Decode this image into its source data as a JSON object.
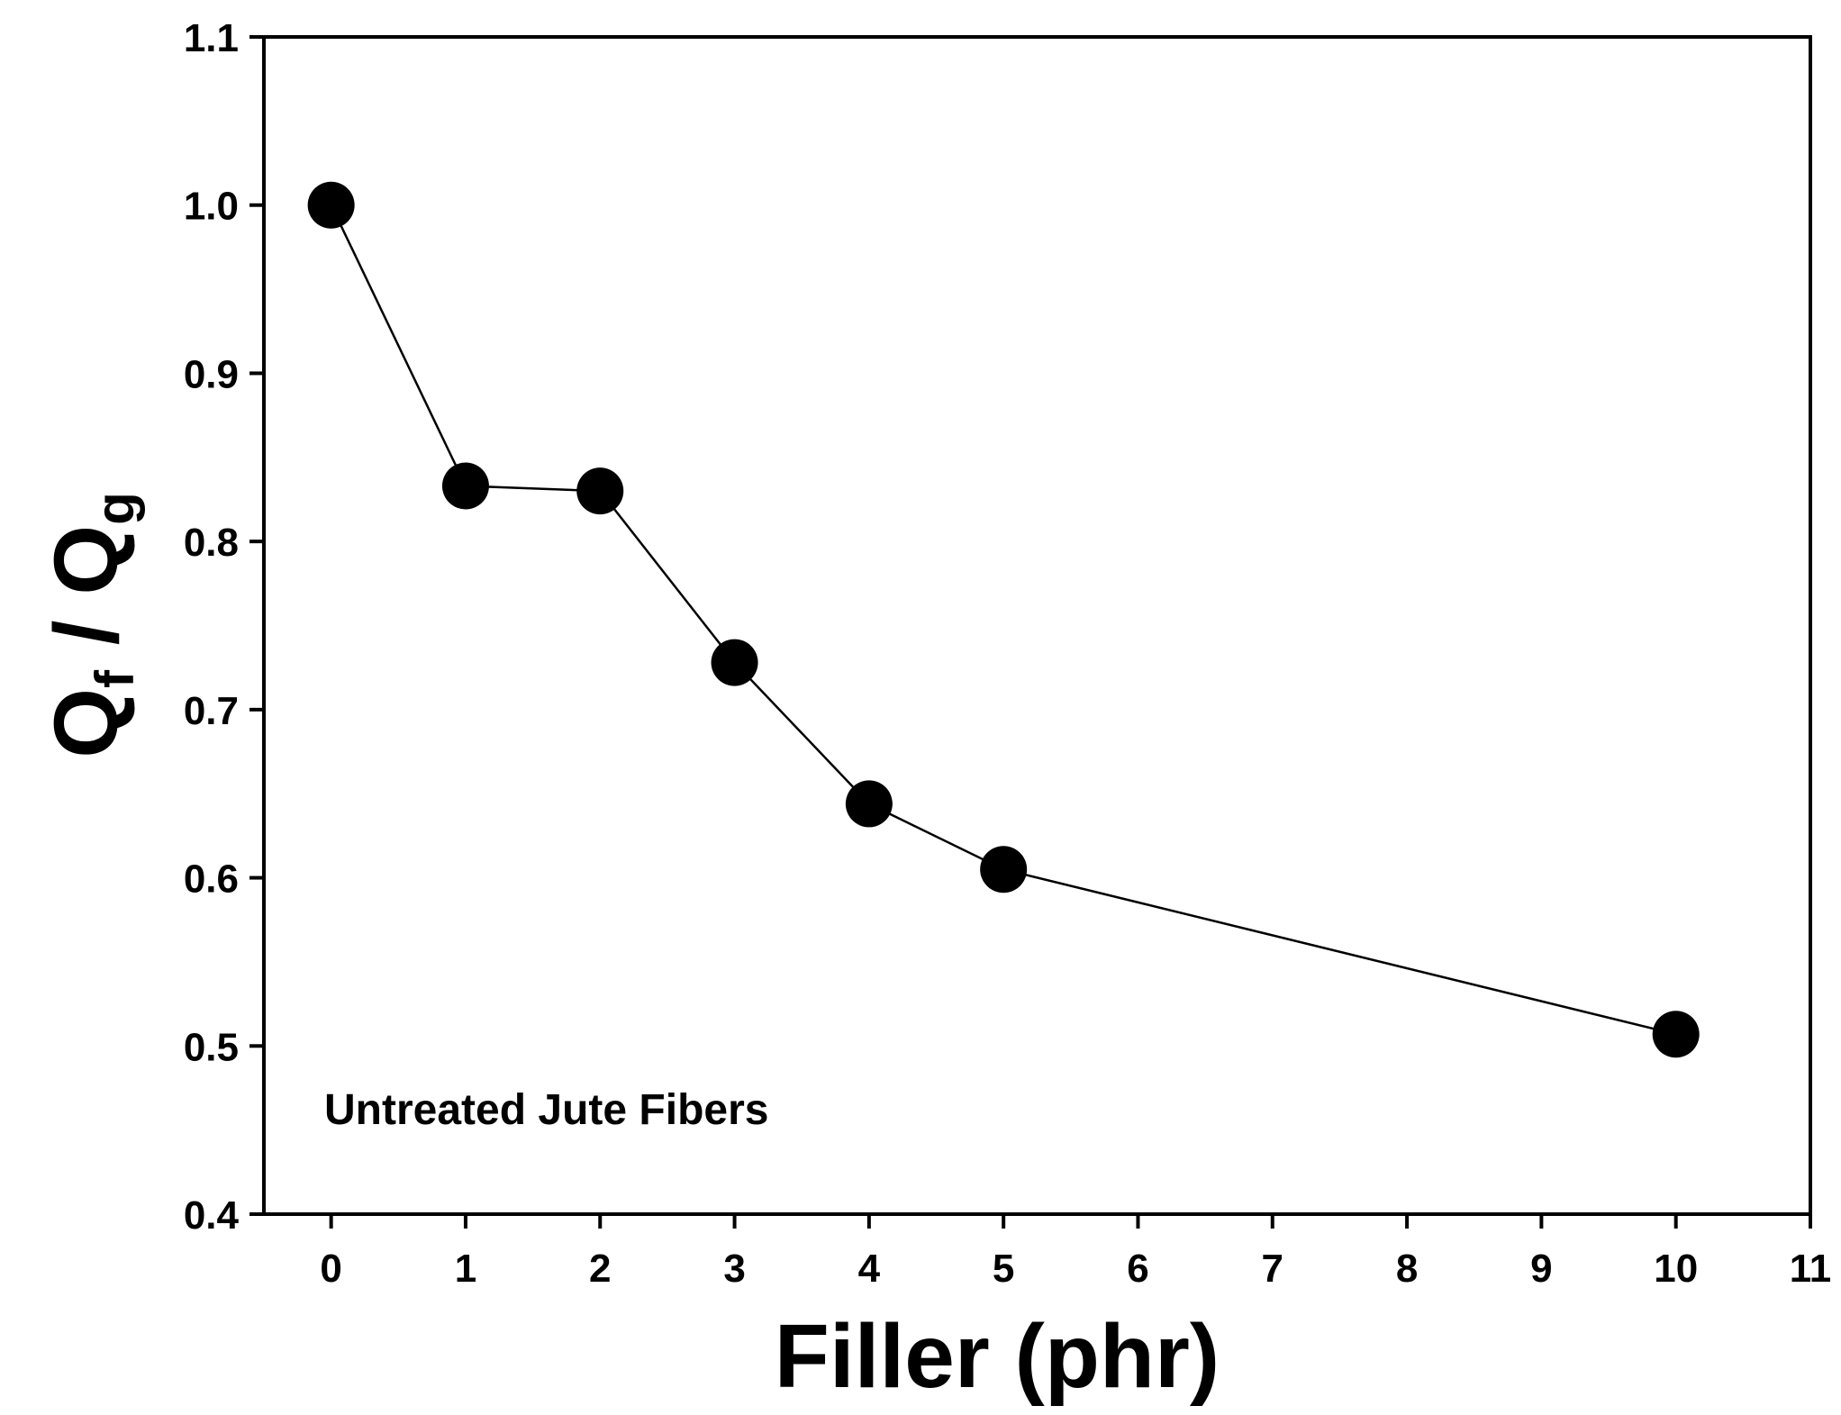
{
  "chart_data": {
    "type": "line",
    "title": "",
    "xlabel": "Filler (phr)",
    "ylabel": {
      "main": "Q",
      "sub1": "f",
      "sep": " / Q",
      "sub2": "g"
    },
    "xlim": [
      -0.5,
      11
    ],
    "ylim": [
      0.4,
      1.1
    ],
    "xticks": [
      0,
      1,
      2,
      3,
      4,
      5,
      6,
      7,
      8,
      9,
      10,
      11
    ],
    "xtick_labels": [
      "0",
      "1",
      "2",
      "3",
      "4",
      "5",
      "6",
      "7",
      "8",
      "9",
      "10",
      "11"
    ],
    "yticks": [
      0.4,
      0.5,
      0.6,
      0.7,
      0.8,
      0.9,
      1.0,
      1.1
    ],
    "ytick_labels": [
      "0.4",
      "0.5",
      "0.6",
      "0.7",
      "0.8",
      "0.9",
      "1.0",
      "1.1"
    ],
    "grid": false,
    "legend": "none",
    "annotation": "Untreated Jute Fibers",
    "series": [
      {
        "x": [
          0,
          1,
          2,
          3,
          4,
          5,
          10
        ],
        "y": [
          1.0,
          0.833,
          0.83,
          0.728,
          0.644,
          0.605,
          0.507
        ],
        "marker": "filled-circle",
        "color": "#000000"
      }
    ]
  }
}
